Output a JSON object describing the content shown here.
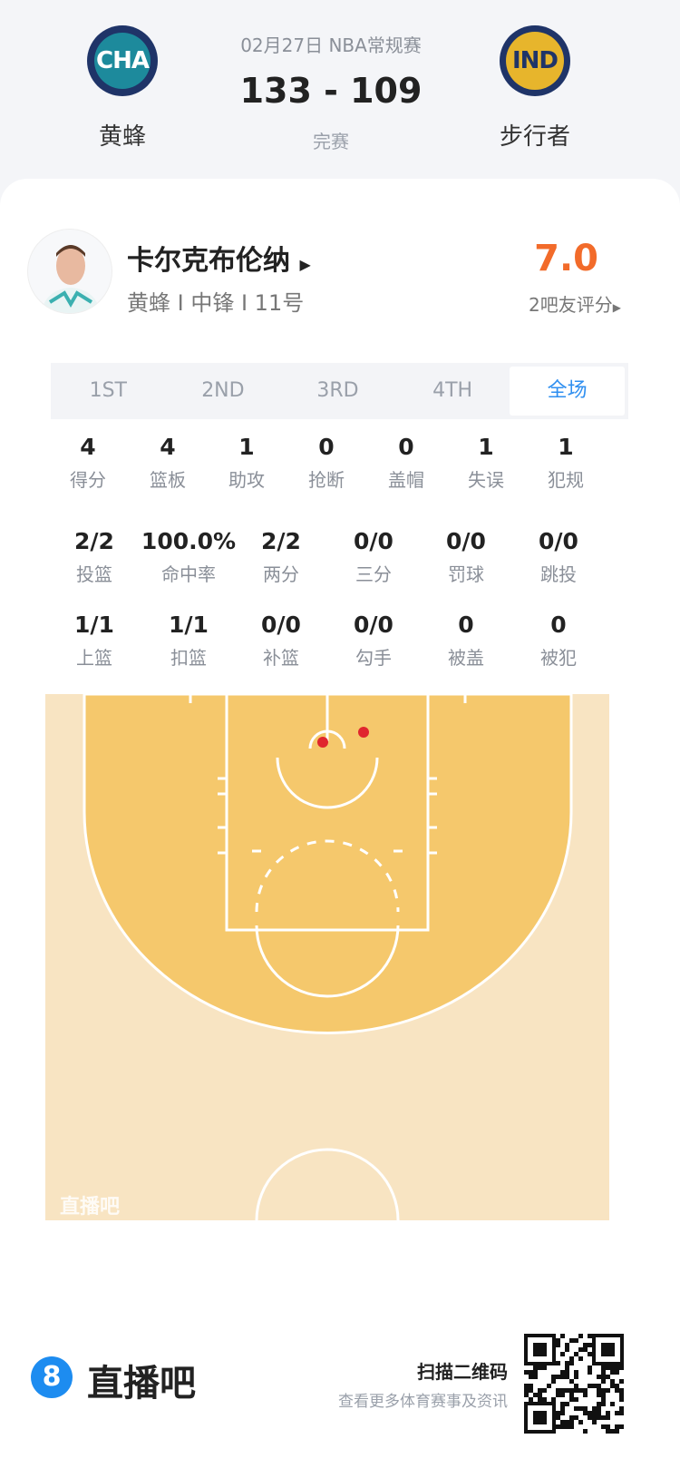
{
  "game": {
    "date_type": "02月27日 NBA常规赛",
    "score": "133 - 109",
    "status": "完赛",
    "home": {
      "abbr": "CHA",
      "name": "黄蜂",
      "color": "#1d7a8c"
    },
    "away": {
      "abbr": "IND",
      "name": "步行者",
      "color": "#e7b52c"
    }
  },
  "player": {
    "name": "卡尔克布伦纳",
    "info": "黄蜂 I 中锋 I 11号",
    "rating": "7.0",
    "rating_label": "2吧友评分",
    "rating_color": "#f26b2a"
  },
  "tabs": [
    {
      "label": "1ST"
    },
    {
      "label": "2ND"
    },
    {
      "label": "3RD"
    },
    {
      "label": "4TH"
    },
    {
      "label": "全场",
      "active": true
    }
  ],
  "stats_row1": [
    {
      "v": "4",
      "l": "得分"
    },
    {
      "v": "4",
      "l": "篮板"
    },
    {
      "v": "1",
      "l": "助攻"
    },
    {
      "v": "0",
      "l": "抢断"
    },
    {
      "v": "0",
      "l": "盖帽"
    },
    {
      "v": "1",
      "l": "失误"
    },
    {
      "v": "1",
      "l": "犯规"
    }
  ],
  "stats_row2": [
    {
      "v": "2/2",
      "l": "投篮"
    },
    {
      "v": "100.0%",
      "l": "命中率"
    },
    {
      "v": "2/2",
      "l": "两分"
    },
    {
      "v": "0/0",
      "l": "三分"
    },
    {
      "v": "0/0",
      "l": "罚球"
    },
    {
      "v": "0/0",
      "l": "跳投"
    }
  ],
  "stats_row3": [
    {
      "v": "1/1",
      "l": "上篮"
    },
    {
      "v": "1/1",
      "l": "扣篮"
    },
    {
      "v": "0/0",
      "l": "补篮"
    },
    {
      "v": "0/0",
      "l": "勾手"
    },
    {
      "v": "0",
      "l": "被盖"
    },
    {
      "v": "0",
      "l": "被犯"
    }
  ],
  "court": {
    "watermark": "直播吧",
    "made_shot_color": "#e0262e",
    "shots_made": 2
  },
  "footer": {
    "brand": "直播吧",
    "scan_title": "扫描二维码",
    "scan_sub": "查看更多体育赛事及资讯"
  }
}
